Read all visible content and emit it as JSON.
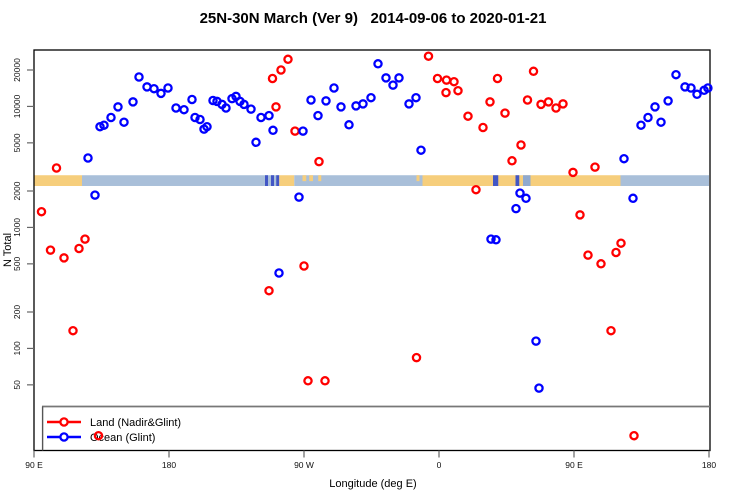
{
  "figure": {
    "title": "25N-30N March (Ver 9)   2014-09-06 to 2020-01-21"
  },
  "chart_data": {
    "type": "scatter",
    "title": "25N-30N March (Ver 9)   2014-09-06 to 2020-01-21",
    "xlabel": "Longitude (deg E)",
    "ylabel": "N Total",
    "x_axis": {
      "note": "longitude in degrees east, extended/wrapped axis 90E..180..90W..0..90E..180",
      "range": [
        90,
        540
      ],
      "ticks": [
        {
          "deg": 90,
          "label": "90 E"
        },
        {
          "deg": 180,
          "label": "180"
        },
        {
          "deg": 270,
          "label": "90 W"
        },
        {
          "deg": 360,
          "label": "0"
        },
        {
          "deg": 450,
          "label": "90 E"
        },
        {
          "deg": 540,
          "label": "180"
        }
      ]
    },
    "y_axis": {
      "scale": "log",
      "ticks": [
        50,
        100,
        200,
        500,
        1000,
        2000,
        5000,
        10000,
        20000
      ],
      "range": [
        14,
        30000
      ]
    },
    "legend": {
      "position": "bottom-left",
      "entries": [
        {
          "label": "Land (Nadir&Glint)",
          "color": "#FF0000"
        },
        {
          "label": "Ocean (Glint)",
          "color": "#0000FF"
        }
      ]
    },
    "map_band": {
      "description": "land/ocean strip for 25N-30N drawn across the plot",
      "value_range": [
        2200,
        2700
      ],
      "colors": {
        "land": "#F6CE7C",
        "ocean": "#A9BFD9",
        "coast": "#4256C5",
        "shallow": "#8FA9CF"
      },
      "segments": [
        {
          "from": 90,
          "to": 122,
          "type": "land"
        },
        {
          "from": 122,
          "to": 253.5,
          "type": "ocean"
        },
        {
          "from": 244,
          "to": 246,
          "type": "coast"
        },
        {
          "from": 248,
          "to": 250,
          "type": "coast"
        },
        {
          "from": 251.5,
          "to": 253.5,
          "type": "coast"
        },
        {
          "from": 253.5,
          "to": 263.5,
          "type": "land"
        },
        {
          "from": 263.5,
          "to": 349,
          "type": "ocean"
        },
        {
          "from": 269,
          "to": 271.5,
          "type": "land_top"
        },
        {
          "from": 273.5,
          "to": 276,
          "type": "land_top"
        },
        {
          "from": 279.5,
          "to": 281.5,
          "type": "land_top"
        },
        {
          "from": 345,
          "to": 347,
          "type": "land_top"
        },
        {
          "from": 349,
          "to": 481,
          "type": "land"
        },
        {
          "from": 396,
          "to": 399.5,
          "type": "coast"
        },
        {
          "from": 411,
          "to": 413.5,
          "type": "coast"
        },
        {
          "from": 416,
          "to": 421,
          "type": "shallow"
        },
        {
          "from": 481,
          "to": 540,
          "type": "ocean"
        }
      ]
    },
    "series": [
      {
        "name": "Land (Nadir&Glint)",
        "color": "#FF0000",
        "points": [
          [
            95,
            1350
          ],
          [
            105,
            3100
          ],
          [
            101,
            650
          ],
          [
            110,
            560
          ],
          [
            120,
            670
          ],
          [
            124,
            800
          ],
          [
            116,
            140
          ],
          [
            133,
            19
          ],
          [
            249,
            17000
          ],
          [
            254.7,
            20000
          ],
          [
            259.3,
            24500
          ],
          [
            251.3,
            9900
          ],
          [
            264,
            6250
          ],
          [
            280,
            3500
          ],
          [
            272.7,
            54
          ],
          [
            284,
            54
          ],
          [
            270,
            480
          ],
          [
            246.7,
            300
          ],
          [
            345,
            84
          ],
          [
            353,
            26000
          ],
          [
            359,
            17000
          ],
          [
            365,
            16500
          ],
          [
            370,
            16000
          ],
          [
            364.7,
            13000
          ],
          [
            372.7,
            13500
          ],
          [
            379.3,
            8300
          ],
          [
            389.3,
            6700
          ],
          [
            394,
            10900
          ],
          [
            399,
            17000
          ],
          [
            423,
            19500
          ],
          [
            404,
            8800
          ],
          [
            419,
            11300
          ],
          [
            428,
            10400
          ],
          [
            433,
            10900
          ],
          [
            438,
            9700
          ],
          [
            442.7,
            10500
          ],
          [
            414.7,
            4800
          ],
          [
            408.7,
            3550
          ],
          [
            384.7,
            2050
          ],
          [
            449.3,
            2850
          ],
          [
            464,
            3150
          ],
          [
            454,
            1270
          ],
          [
            459.3,
            590
          ],
          [
            468,
            500
          ],
          [
            478,
            620
          ],
          [
            481.3,
            740
          ],
          [
            474.7,
            140
          ],
          [
            490,
            19
          ]
        ]
      },
      {
        "name": "Ocean (Glint)",
        "color": "#0000FF",
        "points": [
          [
            126,
            3750
          ],
          [
            130.7,
            1850
          ],
          [
            134,
            6800
          ],
          [
            136.7,
            7000
          ],
          [
            141.3,
            8100
          ],
          [
            146,
            9900
          ],
          [
            150,
            7400
          ],
          [
            156,
            10900
          ],
          [
            160,
            17500
          ],
          [
            165.3,
            14500
          ],
          [
            170,
            14000
          ],
          [
            174.7,
            12800
          ],
          [
            179.3,
            14200
          ],
          [
            184.7,
            9700
          ],
          [
            190,
            9400
          ],
          [
            195.3,
            11400
          ],
          [
            197.3,
            8100
          ],
          [
            200.7,
            7800
          ],
          [
            203.3,
            6500
          ],
          [
            205.3,
            6800
          ],
          [
            209.3,
            11200
          ],
          [
            212,
            11000
          ],
          [
            215.3,
            10400
          ],
          [
            218,
            9700
          ],
          [
            222,
            11600
          ],
          [
            224.7,
            12100
          ],
          [
            227.3,
            11000
          ],
          [
            230,
            10400
          ],
          [
            234.7,
            9500
          ],
          [
            241.3,
            8100
          ],
          [
            238,
            5050
          ],
          [
            246.7,
            8400
          ],
          [
            249.3,
            6350
          ],
          [
            253.3,
            420
          ],
          [
            266.7,
            1780
          ],
          [
            269.3,
            6250
          ],
          [
            274.7,
            11300
          ],
          [
            279.3,
            8400
          ],
          [
            284.7,
            11100
          ],
          [
            290,
            14200
          ],
          [
            294.7,
            9900
          ],
          [
            300,
            7050
          ],
          [
            304.7,
            10100
          ],
          [
            309.3,
            10500
          ],
          [
            314.7,
            11800
          ],
          [
            319.3,
            22500
          ],
          [
            324.7,
            17200
          ],
          [
            329.3,
            15000
          ],
          [
            333.3,
            17200
          ],
          [
            340,
            10500
          ],
          [
            344.7,
            11800
          ],
          [
            348,
            4350
          ],
          [
            394.7,
            800
          ],
          [
            398,
            790
          ],
          [
            411.3,
            1430
          ],
          [
            414,
            1920
          ],
          [
            418,
            1740
          ],
          [
            424.7,
            115
          ],
          [
            426.7,
            47
          ],
          [
            483.3,
            3700
          ],
          [
            489.3,
            1740
          ],
          [
            494.7,
            7000
          ],
          [
            499.3,
            8100
          ],
          [
            504,
            9900
          ],
          [
            508,
            7400
          ],
          [
            512.7,
            11100
          ],
          [
            518,
            18300
          ],
          [
            524,
            14500
          ],
          [
            528,
            14200
          ],
          [
            532,
            12600
          ],
          [
            536.7,
            13600
          ],
          [
            539.3,
            14200
          ]
        ]
      }
    ]
  }
}
